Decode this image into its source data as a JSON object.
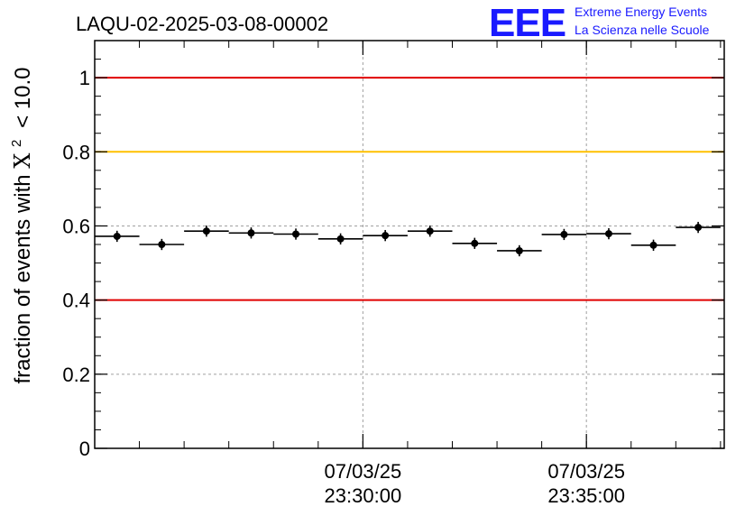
{
  "title": "LAQU-02-2025-03-08-00002",
  "logo": {
    "mark": "EEE",
    "line1": "Extreme Energy Events",
    "line2": "La Scienza nelle Scuole",
    "color": "#1a1aff"
  },
  "colors": {
    "red_line": "#e00000",
    "yellow_line": "#ffc000",
    "grid": "#a0a0a0",
    "markers": "#000000"
  },
  "chart_data": {
    "type": "scatter",
    "title": "LAQU-02-2025-03-08-00002",
    "ylabel_prefix": "fraction of events with",
    "ylabel_symbol": "Χ",
    "ylabel_sup": "2",
    "ylabel_suffix": "< 10.0",
    "xlabel": "",
    "x_axis": "time",
    "xlim": [
      "07/03/25 23:24:00",
      "07/03/25 23:38:05"
    ],
    "ylim": [
      0,
      1.1
    ],
    "yticks": [
      {
        "value": 0,
        "label": "0"
      },
      {
        "value": 0.2,
        "label": "0.2"
      },
      {
        "value": 0.4,
        "label": "0.4"
      },
      {
        "value": 0.6,
        "label": "0.6"
      },
      {
        "value": 0.8,
        "label": "0.8"
      },
      {
        "value": 1,
        "label": "1"
      }
    ],
    "xticks_major": [
      {
        "time": "07/03/25 23:30:00",
        "date": "07/03/25",
        "clock": "23:30:00"
      },
      {
        "time": "07/03/25 23:35:00",
        "date": "07/03/25",
        "clock": "23:35:00"
      }
    ],
    "reference_lines": [
      {
        "y": 1.0,
        "color": "red"
      },
      {
        "y": 0.8,
        "color": "yellow"
      },
      {
        "y": 0.4,
        "color": "red"
      }
    ],
    "grid": true,
    "bin_width_min": 1,
    "points": [
      {
        "x": "23:24:00",
        "y": 0.572,
        "err": 0.015
      },
      {
        "x": "23:25:00",
        "y": 0.55,
        "err": 0.015
      },
      {
        "x": "23:26:00",
        "y": 0.586,
        "err": 0.015
      },
      {
        "x": "23:27:00",
        "y": 0.581,
        "err": 0.015
      },
      {
        "x": "23:28:00",
        "y": 0.578,
        "err": 0.015
      },
      {
        "x": "23:29:00",
        "y": 0.565,
        "err": 0.015
      },
      {
        "x": "23:30:00",
        "y": 0.574,
        "err": 0.015
      },
      {
        "x": "23:31:00",
        "y": 0.586,
        "err": 0.015
      },
      {
        "x": "23:32:00",
        "y": 0.553,
        "err": 0.015
      },
      {
        "x": "23:33:00",
        "y": 0.533,
        "err": 0.015
      },
      {
        "x": "23:34:00",
        "y": 0.577,
        "err": 0.015
      },
      {
        "x": "23:35:00",
        "y": 0.579,
        "err": 0.015
      },
      {
        "x": "23:36:00",
        "y": 0.548,
        "err": 0.015
      },
      {
        "x": "23:37:00",
        "y": 0.596,
        "err": 0.015
      }
    ]
  }
}
